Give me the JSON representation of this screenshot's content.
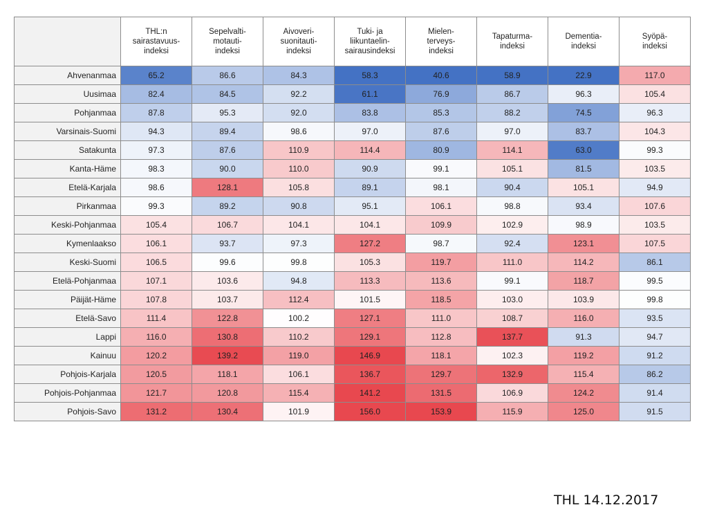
{
  "footer": "THL 14.12.2017",
  "colors": {
    "low": "#4472c4",
    "mid": "#ffffff",
    "high": "#e8484f",
    "header_fill": "#f2f2f2",
    "grid": "#8c8c8c"
  },
  "chart_data": {
    "type": "heatmap",
    "columns": [
      "THL:n\nsairastavuus-\nindeksi",
      "Sepelvalti-\nmotauti-\nindeksi",
      "Aivoveri-\nsuonitauti-\nindeksi",
      "Tuki- ja\nliikuntaelin-\nsairausindeksi",
      "Mielen-\nterveys-\nindeksi",
      "Tapaturma-\nindeksi",
      "Dementia-\nindeksi",
      "Syöpä-\nindeksi"
    ],
    "rows": [
      "Ahvenanmaa",
      "Uusimaa",
      "Pohjanmaa",
      "Varsinais-Suomi",
      "Satakunta",
      "Kanta-Häme",
      "Etelä-Karjala",
      "Pirkanmaa",
      "Keski-Pohjanmaa",
      "Kymenlaakso",
      "Keski-Suomi",
      "Etelä-Pohjanmaa",
      "Päijät-Häme",
      "Etelä-Savo",
      "Lappi",
      "Kainuu",
      "Pohjois-Karjala",
      "Pohjois-Pohjanmaa",
      "Pohjois-Savo"
    ],
    "values": [
      [
        "65.2",
        "86.6",
        "84.3",
        "58.3",
        "40.6",
        "58.9",
        "22.9",
        "117.0"
      ],
      [
        "82.4",
        "84.5",
        "92.2",
        "61.1",
        "76.9",
        "86.7",
        "96.3",
        "105.4"
      ],
      [
        "87.8",
        "95.3",
        "92.0",
        "83.8",
        "85.3",
        "88.2",
        "74.5",
        "96.3"
      ],
      [
        "94.3",
        "89.4",
        "98.6",
        "97.0",
        "87.6",
        "97.0",
        "83.7",
        "104.3"
      ],
      [
        "97.3",
        "87.6",
        "110.9",
        "114.4",
        "80.9",
        "114.1",
        "63.0",
        "99.3"
      ],
      [
        "98.3",
        "90.0",
        "110.0",
        "90.9",
        "99.1",
        "105.1",
        "81.5",
        "103.5"
      ],
      [
        "98.6",
        "128.1",
        "105.8",
        "89.1",
        "98.1",
        "90.4",
        "105.1",
        "94.9"
      ],
      [
        "99.3",
        "89.2",
        "90.8",
        "95.1",
        "106.1",
        "98.8",
        "93.4",
        "107.6"
      ],
      [
        "105.4",
        "106.7",
        "104.1",
        "104.1",
        "109.9",
        "102.9",
        "98.9",
        "103.5"
      ],
      [
        "106.1",
        "93.7",
        "97.3",
        "127.2",
        "98.7",
        "92.4",
        "123.1",
        "107.5"
      ],
      [
        "106.5",
        "99.6",
        "99.8",
        "105.3",
        "119.7",
        "111.0",
        "114.2",
        "86.1"
      ],
      [
        "107.1",
        "103.6",
        "94.8",
        "113.3",
        "113.6",
        "99.1",
        "118.7",
        "99.5"
      ],
      [
        "107.8",
        "103.7",
        "112.4",
        "101.5",
        "118.5",
        "103.0",
        "103.9",
        "99.8"
      ],
      [
        "111.4",
        "122.8",
        "100.2",
        "127.1",
        "111.0",
        "108.7",
        "116.0",
        "93.5"
      ],
      [
        "116.0",
        "130.8",
        "110.2",
        "129.1",
        "112.8",
        "137.7",
        "91.3",
        "94.7"
      ],
      [
        "120.2",
        "139.2",
        "119.0",
        "146.9",
        "118.1",
        "102.3",
        "119.2",
        "91.2"
      ],
      [
        "120.5",
        "118.1",
        "106.1",
        "136.7",
        "129.7",
        "132.9",
        "115.4",
        "86.2"
      ],
      [
        "121.7",
        "120.8",
        "115.4",
        "141.2",
        "131.5",
        "106.9",
        "124.2",
        "91.4"
      ],
      [
        "131.2",
        "130.4",
        "101.9",
        "156.0",
        "153.9",
        "115.9",
        "125.0",
        "91.5"
      ]
    ]
  }
}
